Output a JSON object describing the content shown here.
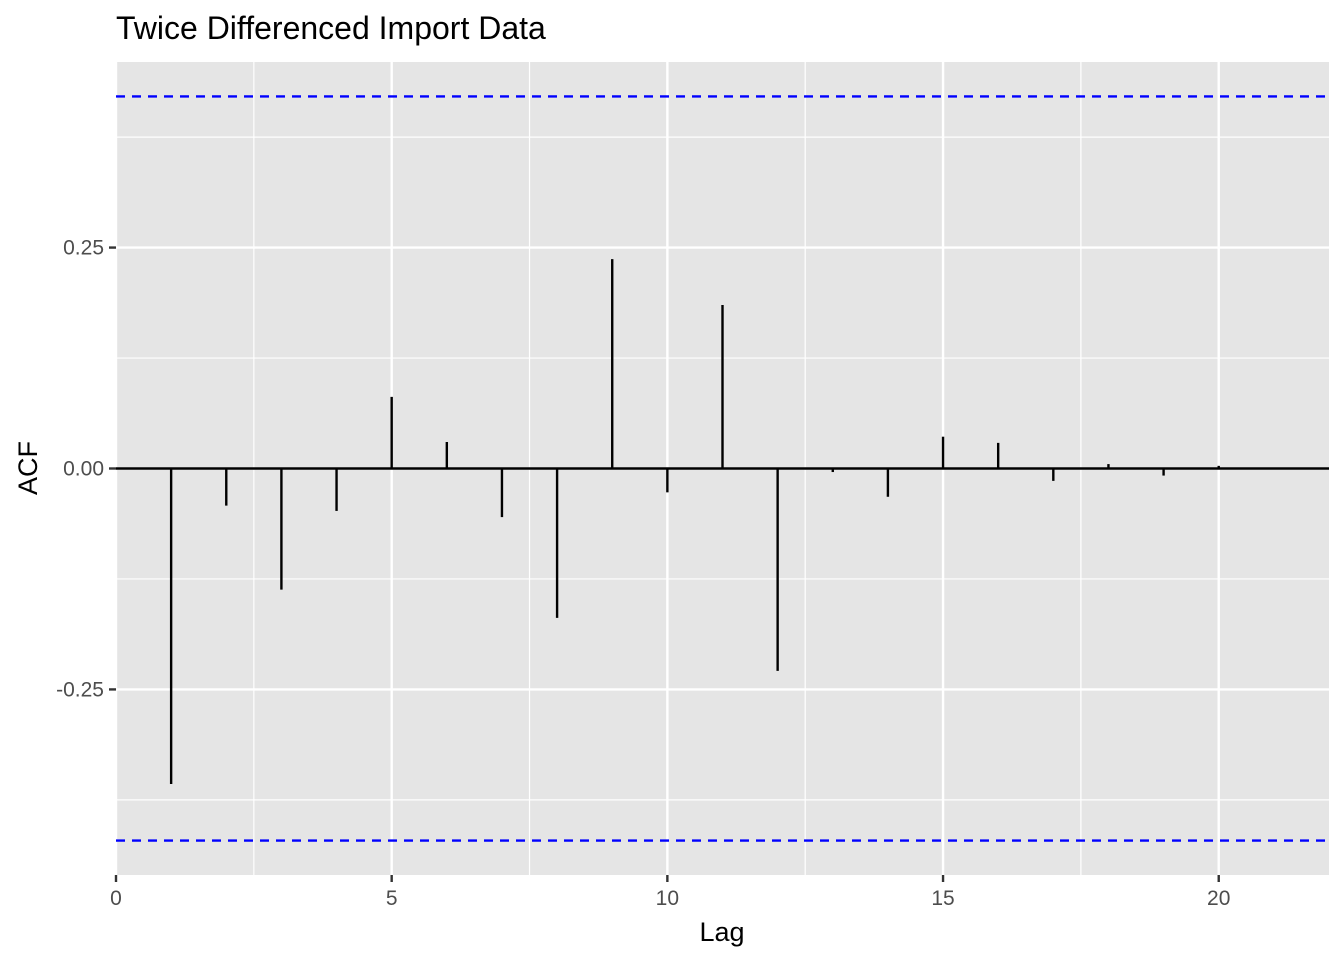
{
  "chart_data": {
    "type": "bar",
    "title": "Twice Differenced Import Data",
    "xlabel": "Lag",
    "ylabel": "ACF",
    "x": [
      1,
      2,
      3,
      4,
      5,
      6,
      7,
      8,
      9,
      10,
      11,
      12,
      13,
      14,
      15,
      16,
      17,
      18,
      19,
      20
    ],
    "values": [
      -0.357,
      -0.042,
      -0.137,
      -0.048,
      0.081,
      0.03,
      -0.055,
      -0.169,
      0.237,
      -0.027,
      0.185,
      -0.229,
      -0.004,
      -0.032,
      0.036,
      0.029,
      -0.014,
      0.005,
      -0.008,
      0.003
    ],
    "xlim": [
      0,
      22
    ],
    "ylim": [
      -0.46,
      0.46
    ],
    "x_ticks": [
      "0",
      "5",
      "10",
      "15",
      "20"
    ],
    "y_ticks": [
      "-0.25",
      "0.00",
      "0.25"
    ],
    "confidence_bound": 0.421,
    "grid": true,
    "colors": {
      "panel_background": "#e5e5e5",
      "grid": "#ffffff",
      "bars": "#000000",
      "confidence_lines": "#0000ff"
    }
  }
}
